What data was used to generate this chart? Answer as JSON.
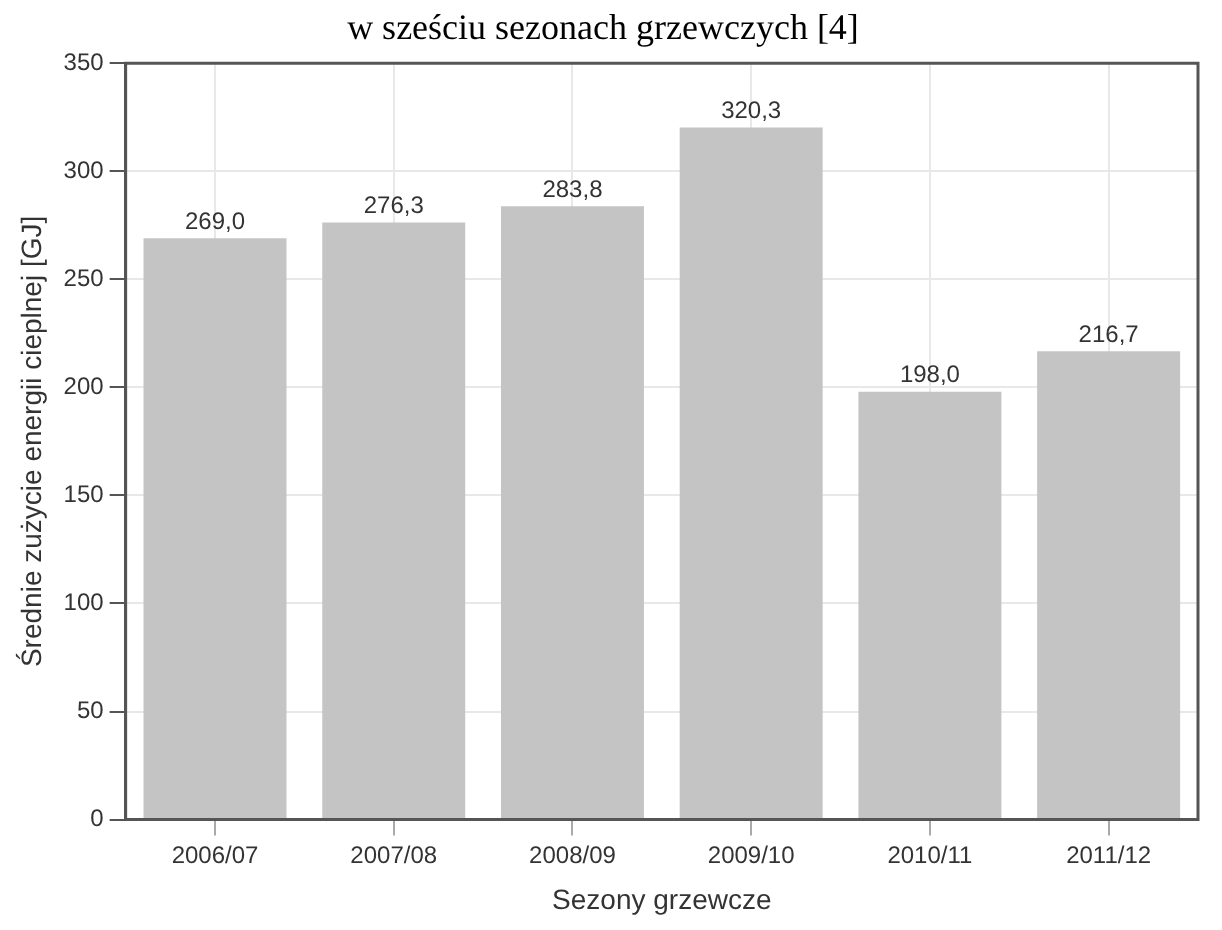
{
  "chart_data": {
    "type": "bar",
    "title": "w sześciu sezonach grzewczych [4]",
    "xlabel": "Sezony grzewcze",
    "ylabel": "Średnie zużycie energii cieplnej [GJ]",
    "categories": [
      "2006/07",
      "2007/08",
      "2008/09",
      "2009/10",
      "2010/11",
      "2011/12"
    ],
    "values": [
      269.0,
      276.3,
      283.8,
      320.3,
      198.0,
      216.7
    ],
    "value_labels": [
      "269,0",
      "276,3",
      "283,8",
      "320,3",
      "198,0",
      "216,7"
    ],
    "color": "#c4c4c4",
    "ylim": [
      0,
      350
    ],
    "yticks": [
      0,
      50,
      100,
      150,
      200,
      250,
      300,
      350
    ],
    "grid": true
  }
}
